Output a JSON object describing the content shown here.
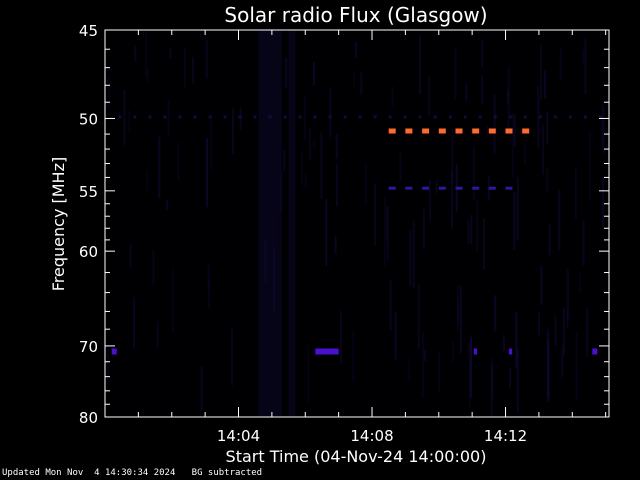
{
  "chart_data": {
    "type": "heatmap",
    "title": "Solar radio Flux (Glasgow)",
    "xlabel": "Start Time (04-Nov-24 14:00:00)",
    "ylabel": "Frequency [MHz]",
    "x_unit": "minutes after 14:00",
    "xlim": [
      0,
      15.1
    ],
    "ylim": [
      80,
      45
    ],
    "y_scale": "reciprocal",
    "x_ticks": [
      {
        "minute": 4,
        "label": "14:04"
      },
      {
        "minute": 8,
        "label": "14:08"
      },
      {
        "minute": 12,
        "label": "14:12"
      }
    ],
    "y_ticks": [
      {
        "value": 45,
        "label": "45"
      },
      {
        "value": 50,
        "label": "50"
      },
      {
        "value": 55,
        "label": "55"
      },
      {
        "value": 60,
        "label": "60"
      },
      {
        "value": 70,
        "label": "70"
      },
      {
        "value": 80,
        "label": "80"
      }
    ],
    "colormap": [
      "#000000",
      "#1a0a5a",
      "#3a00c8",
      "#ff5a28",
      "#ff8040"
    ],
    "features": [
      {
        "name": "dashed-emission-50.8MHz",
        "freq": 50.8,
        "x_start": 8.5,
        "x_end": 12.6,
        "color": "#ff6a30",
        "intensity": "high"
      },
      {
        "name": "dashed-emission-54.8MHz",
        "freq": 54.8,
        "x_start": 8.5,
        "x_end": 12.2,
        "color": "#2a1aa0",
        "intensity": "low"
      },
      {
        "name": "burst-70.7MHz",
        "freq": 70.7,
        "x_start": 6.3,
        "x_end": 7.0,
        "color": "#4a10d0",
        "intensity": "medium"
      },
      {
        "name": "spot-70.7MHz-a",
        "freq": 70.7,
        "x_start": 0.2,
        "x_end": 0.35,
        "color": "#4a10d0",
        "intensity": "medium"
      },
      {
        "name": "spot-70.7MHz-b",
        "freq": 70.7,
        "x_start": 11.05,
        "x_end": 11.15,
        "color": "#4a10d0",
        "intensity": "medium"
      },
      {
        "name": "spot-70.7MHz-c",
        "freq": 70.7,
        "x_start": 12.1,
        "x_end": 12.2,
        "color": "#4a10d0",
        "intensity": "medium"
      },
      {
        "name": "spot-70.7MHz-d",
        "freq": 70.7,
        "x_start": 14.6,
        "x_end": 14.75,
        "color": "#4a10d0",
        "intensity": "medium"
      }
    ]
  },
  "footer": {
    "updated": "Updated Mon Nov  4 14:30:34 2024",
    "note": "BG subtracted"
  }
}
